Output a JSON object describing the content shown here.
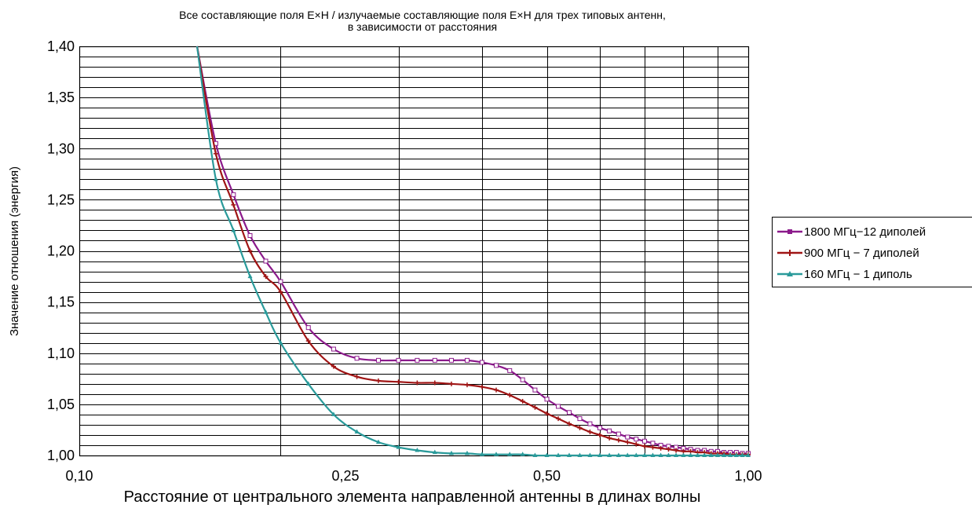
{
  "chart_data": {
    "type": "line",
    "title_lines": [
      "Все составляющие поля E×H / излучаемые составляющие поля E×H для трех типовых антенн,",
      "в зависимости от расстояния"
    ],
    "xlabel": "Расстояние от центрального элемента направленной антенны в длинах волны",
    "ylabel": "Значение отношения (энергия)",
    "x_scale": "log",
    "xlim": [
      0.1,
      1.0
    ],
    "ylim": [
      1.0,
      1.4
    ],
    "x_ticks": [
      {
        "value": 0.1,
        "label": "0,10"
      },
      {
        "value": 0.25,
        "label": "0,25"
      },
      {
        "value": 0.5,
        "label": "0,50"
      },
      {
        "value": 1.0,
        "label": "1,00"
      }
    ],
    "y_ticks": [
      {
        "value": 1.0,
        "label": "1,00"
      },
      {
        "value": 1.05,
        "label": "1,05"
      },
      {
        "value": 1.1,
        "label": "1,10"
      },
      {
        "value": 1.15,
        "label": "1,15"
      },
      {
        "value": 1.2,
        "label": "1,20"
      },
      {
        "value": 1.25,
        "label": "1,25"
      },
      {
        "value": 1.3,
        "label": "1,30"
      },
      {
        "value": 1.35,
        "label": "1,35"
      },
      {
        "value": 1.4,
        "label": "1,40"
      }
    ],
    "grid": "on",
    "legend_position": "right",
    "series": [
      {
        "name": "1800 МГц−12 диполей",
        "color": "#8b1a8b",
        "marker": "square",
        "x": [
          0.15,
          0.16,
          0.17,
          0.18,
          0.19,
          0.2,
          0.22,
          0.24,
          0.26,
          0.28,
          0.3,
          0.32,
          0.34,
          0.36,
          0.38,
          0.4,
          0.42,
          0.44,
          0.46,
          0.48,
          0.5,
          0.52,
          0.54,
          0.56,
          0.58,
          0.6,
          0.62,
          0.64,
          0.66,
          0.68,
          0.7,
          0.72,
          0.74,
          0.76,
          0.78,
          0.8,
          0.82,
          0.84,
          0.86,
          0.88,
          0.9,
          0.92,
          0.94,
          0.96,
          0.98,
          1.0
        ],
        "y": [
          1.4,
          1.305,
          1.255,
          1.215,
          1.19,
          1.17,
          1.125,
          1.104,
          1.095,
          1.093,
          1.093,
          1.093,
          1.093,
          1.093,
          1.093,
          1.091,
          1.088,
          1.083,
          1.074,
          1.064,
          1.055,
          1.048,
          1.042,
          1.036,
          1.031,
          1.027,
          1.024,
          1.021,
          1.018,
          1.016,
          1.014,
          1.012,
          1.01,
          1.009,
          1.008,
          1.007,
          1.006,
          1.005,
          1.005,
          1.004,
          1.004,
          1.003,
          1.003,
          1.003,
          1.002,
          1.002
        ]
      },
      {
        "name": "900 МГц  − 7 диполей",
        "color": "#a01515",
        "marker": "plus",
        "x": [
          0.15,
          0.16,
          0.17,
          0.18,
          0.19,
          0.2,
          0.22,
          0.24,
          0.26,
          0.28,
          0.3,
          0.32,
          0.34,
          0.36,
          0.38,
          0.4,
          0.42,
          0.44,
          0.46,
          0.48,
          0.5,
          0.52,
          0.54,
          0.56,
          0.58,
          0.6,
          0.62,
          0.64,
          0.66,
          0.68,
          0.7,
          0.72,
          0.74,
          0.76,
          0.78,
          0.8,
          0.82,
          0.84,
          0.86,
          0.88,
          0.9,
          0.92,
          0.94,
          0.96,
          0.98,
          1.0
        ],
        "y": [
          1.4,
          1.295,
          1.245,
          1.2,
          1.175,
          1.16,
          1.112,
          1.087,
          1.077,
          1.073,
          1.072,
          1.071,
          1.071,
          1.07,
          1.069,
          1.067,
          1.064,
          1.059,
          1.053,
          1.047,
          1.041,
          1.036,
          1.031,
          1.027,
          1.023,
          1.02,
          1.017,
          1.015,
          1.013,
          1.011,
          1.009,
          1.008,
          1.007,
          1.006,
          1.005,
          1.004,
          1.004,
          1.003,
          1.003,
          1.002,
          1.002,
          1.002,
          1.001,
          1.001,
          1.001,
          1.001
        ]
      },
      {
        "name": "160 МГц − 1 диполь",
        "color": "#2a9a9a",
        "marker": "triangle",
        "x": [
          0.15,
          0.16,
          0.17,
          0.18,
          0.19,
          0.2,
          0.22,
          0.24,
          0.26,
          0.28,
          0.3,
          0.32,
          0.34,
          0.36,
          0.38,
          0.4,
          0.42,
          0.44,
          0.46,
          0.48,
          0.5,
          0.52,
          0.54,
          0.56,
          0.58,
          0.6,
          0.62,
          0.64,
          0.66,
          0.68,
          0.7,
          0.72,
          0.74,
          0.76,
          0.78,
          0.8,
          0.82,
          0.84,
          0.86,
          0.88,
          0.9,
          0.92,
          0.94,
          0.96,
          0.98,
          1.0
        ],
        "y": [
          1.4,
          1.27,
          1.22,
          1.175,
          1.14,
          1.11,
          1.07,
          1.04,
          1.023,
          1.013,
          1.008,
          1.005,
          1.003,
          1.002,
          1.002,
          1.001,
          1.001,
          1.001,
          1.001,
          1.0,
          1.0,
          1.0,
          1.0,
          1.0,
          1.0,
          1.0,
          1.0,
          1.0,
          1.0,
          1.0,
          1.0,
          1.0,
          1.0,
          1.0,
          1.0,
          1.0,
          1.0,
          1.0,
          1.0,
          1.0,
          1.0,
          1.0,
          1.0,
          1.0,
          1.0,
          1.0
        ]
      }
    ]
  }
}
